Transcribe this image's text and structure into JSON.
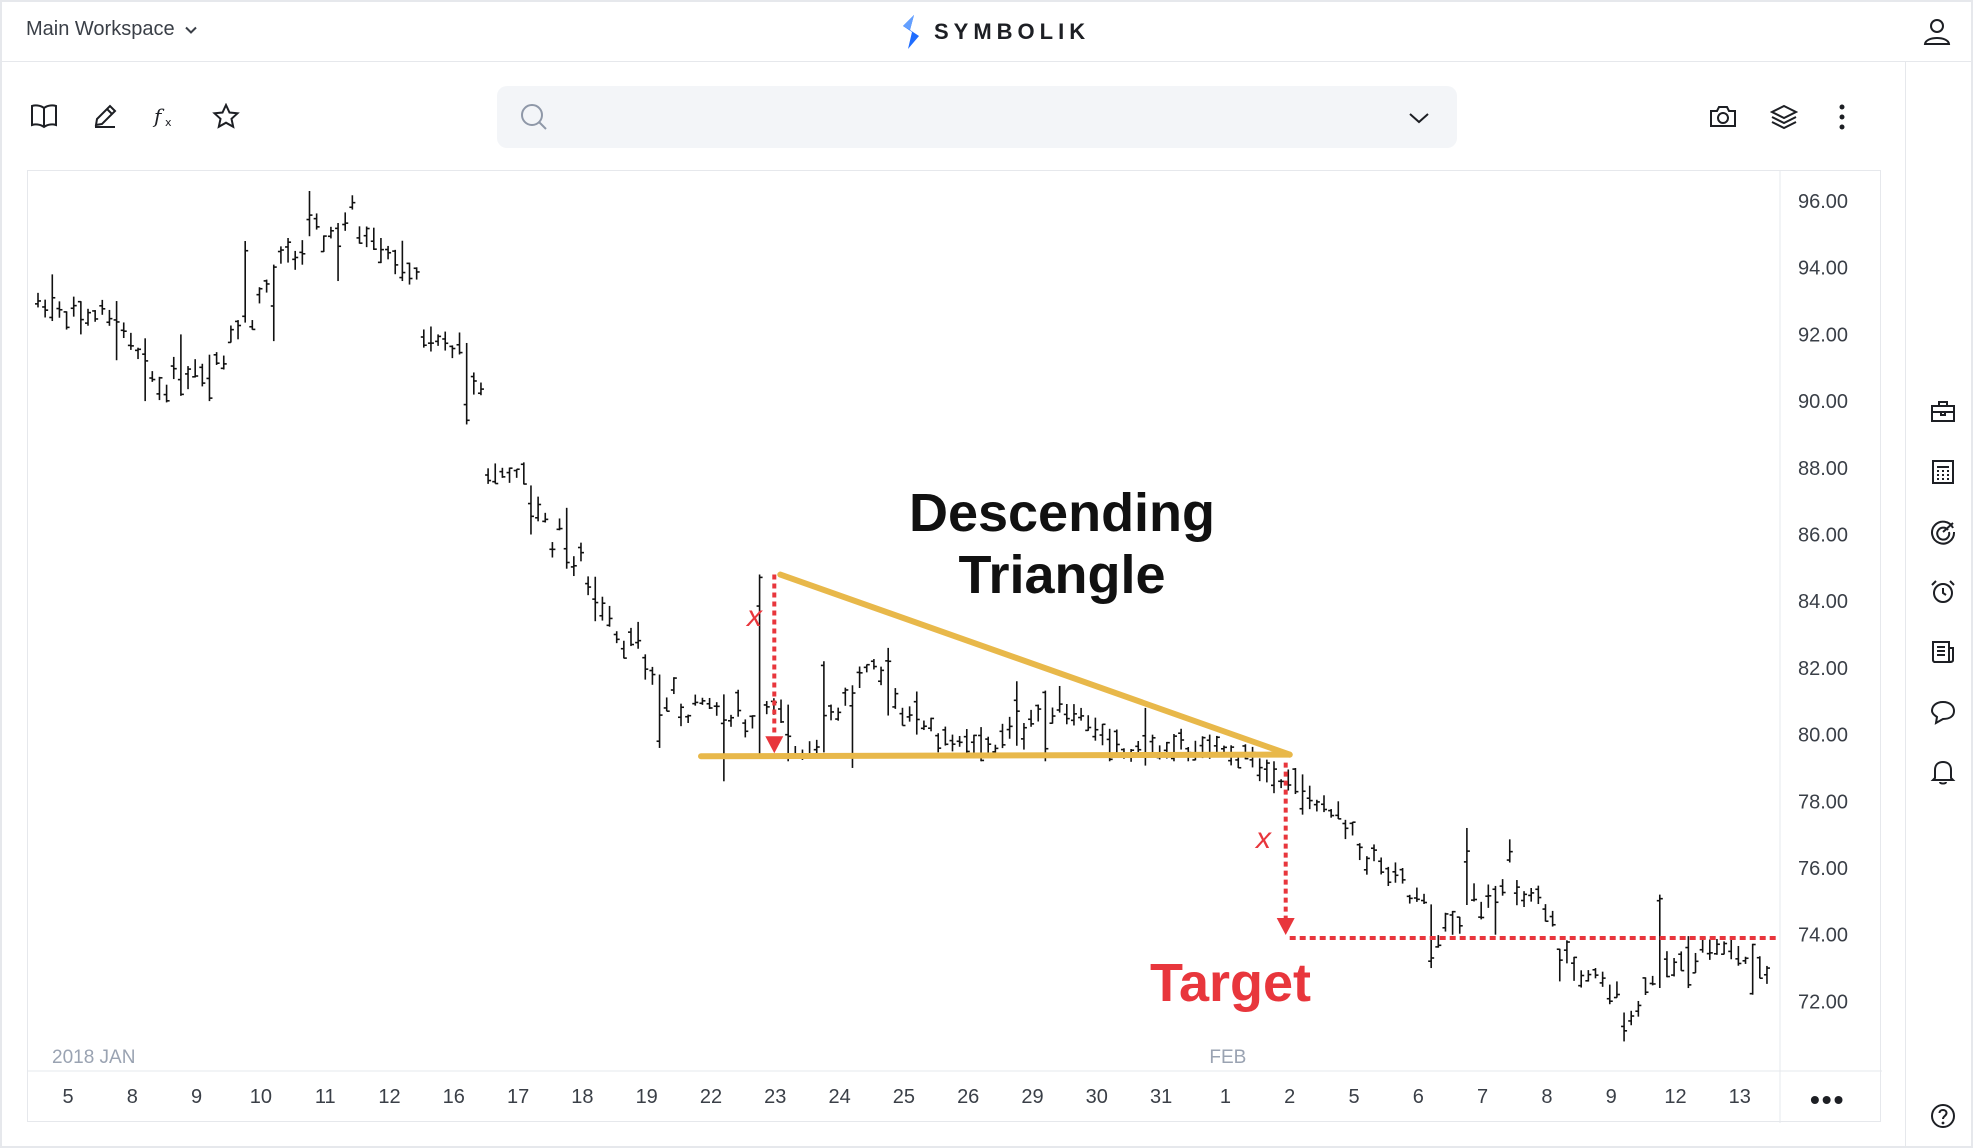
{
  "header": {
    "workspace": "Main Workspace",
    "brand": "SYMBOLIK",
    "brand_color": "#1f6dff"
  },
  "toolbar": {
    "icons": [
      "book-icon",
      "pencil-icon",
      "function-icon",
      "star-icon"
    ],
    "right_icons": [
      "camera-icon",
      "layers-icon",
      "more-vertical-icon"
    ]
  },
  "search": {
    "placeholder": ""
  },
  "sidebar": {
    "icons": [
      "briefcase-icon",
      "calculator-icon",
      "radar-icon",
      "alarm-icon",
      "news-icon",
      "chat-icon",
      "bell-icon",
      "help-icon"
    ]
  },
  "annotations": {
    "title": "Descending Triangle",
    "target": "Target",
    "x_label": "x",
    "accent": "#e8363c",
    "trendline_color": "#e8b84a"
  },
  "chart_data": {
    "type": "ohlc",
    "price_axis": [
      "96.00",
      "94.00",
      "92.00",
      "90.00",
      "88.00",
      "86.00",
      "84.00",
      "82.00",
      "80.00",
      "78.00",
      "76.00",
      "74.00",
      "72.00"
    ],
    "ylim": [
      70.2,
      97.0
    ],
    "time_labels": [
      "5",
      "8",
      "9",
      "10",
      "11",
      "12",
      "16",
      "17",
      "18",
      "19",
      "22",
      "23",
      "24",
      "25",
      "26",
      "29",
      "30",
      "31",
      "1",
      "2",
      "5",
      "6",
      "7",
      "8",
      "9",
      "12",
      "13"
    ],
    "month_labels": [
      {
        "label": "2018 JAN",
        "at": 0
      },
      {
        "label": "FEB",
        "at": 18
      }
    ],
    "more_label": "•••",
    "daily_ranges": [
      {
        "day": "5",
        "low": 92.0,
        "high": 93.8,
        "close": 92.6
      },
      {
        "day": "8",
        "low": 90.0,
        "high": 93.0,
        "close": 90.5
      },
      {
        "day": "9",
        "low": 90.0,
        "high": 92.0,
        "close": 91.5
      },
      {
        "day": "10",
        "low": 91.8,
        "high": 94.8,
        "close": 94.3
      },
      {
        "day": "11",
        "low": 93.6,
        "high": 96.3,
        "close": 95.5
      },
      {
        "day": "12",
        "low": 93.6,
        "high": 95.2,
        "close": 93.8
      },
      {
        "day": "16",
        "low": 89.3,
        "high": 92.0,
        "close": 90.4
      },
      {
        "day": "17",
        "low": 86.0,
        "high": 88.0,
        "close": 86.4
      },
      {
        "day": "18",
        "low": 83.4,
        "high": 86.8,
        "close": 83.8
      },
      {
        "day": "19",
        "low": 79.6,
        "high": 83.2,
        "close": 80.8
      },
      {
        "day": "22",
        "low": 78.6,
        "high": 81.2,
        "close": 80.9
      },
      {
        "day": "23",
        "low": 79.2,
        "high": 84.8,
        "close": 79.6
      },
      {
        "day": "24",
        "low": 79.0,
        "high": 82.2,
        "close": 81.8
      },
      {
        "day": "25",
        "low": 80.0,
        "high": 82.6,
        "close": 80.3
      },
      {
        "day": "26",
        "low": 79.2,
        "high": 80.0,
        "close": 79.6
      },
      {
        "day": "29",
        "low": 79.2,
        "high": 81.6,
        "close": 81.2
      },
      {
        "day": "30",
        "low": 79.2,
        "high": 80.8,
        "close": 79.4
      },
      {
        "day": "31",
        "low": 79.2,
        "high": 80.8,
        "close": 79.6
      },
      {
        "day": "1",
        "low": 79.0,
        "high": 80.0,
        "close": 79.4
      },
      {
        "day": "2",
        "low": 77.6,
        "high": 79.2,
        "close": 78.0
      },
      {
        "day": "5",
        "low": 75.8,
        "high": 78.0,
        "close": 76.0
      },
      {
        "day": "6",
        "low": 73.0,
        "high": 76.0,
        "close": 74.0
      },
      {
        "day": "7",
        "low": 74.0,
        "high": 77.2,
        "close": 76.2
      },
      {
        "day": "8",
        "low": 72.6,
        "high": 75.4,
        "close": 73.0
      },
      {
        "day": "9",
        "low": 70.8,
        "high": 73.0,
        "close": 71.6
      },
      {
        "day": "12",
        "low": 72.4,
        "high": 75.2,
        "close": 74.0
      },
      {
        "day": "13",
        "low": 72.2,
        "high": 73.8,
        "close": 72.9
      }
    ],
    "pattern": {
      "resistance": [
        {
          "day_index": 11,
          "price": 84.8
        },
        {
          "day_index": 19,
          "price": 79.4
        }
      ],
      "support": [
        {
          "day_index": 10,
          "price": 79.35
        },
        {
          "day_index": 19,
          "price": 79.4
        }
      ],
      "target_price": 73.9
    }
  }
}
